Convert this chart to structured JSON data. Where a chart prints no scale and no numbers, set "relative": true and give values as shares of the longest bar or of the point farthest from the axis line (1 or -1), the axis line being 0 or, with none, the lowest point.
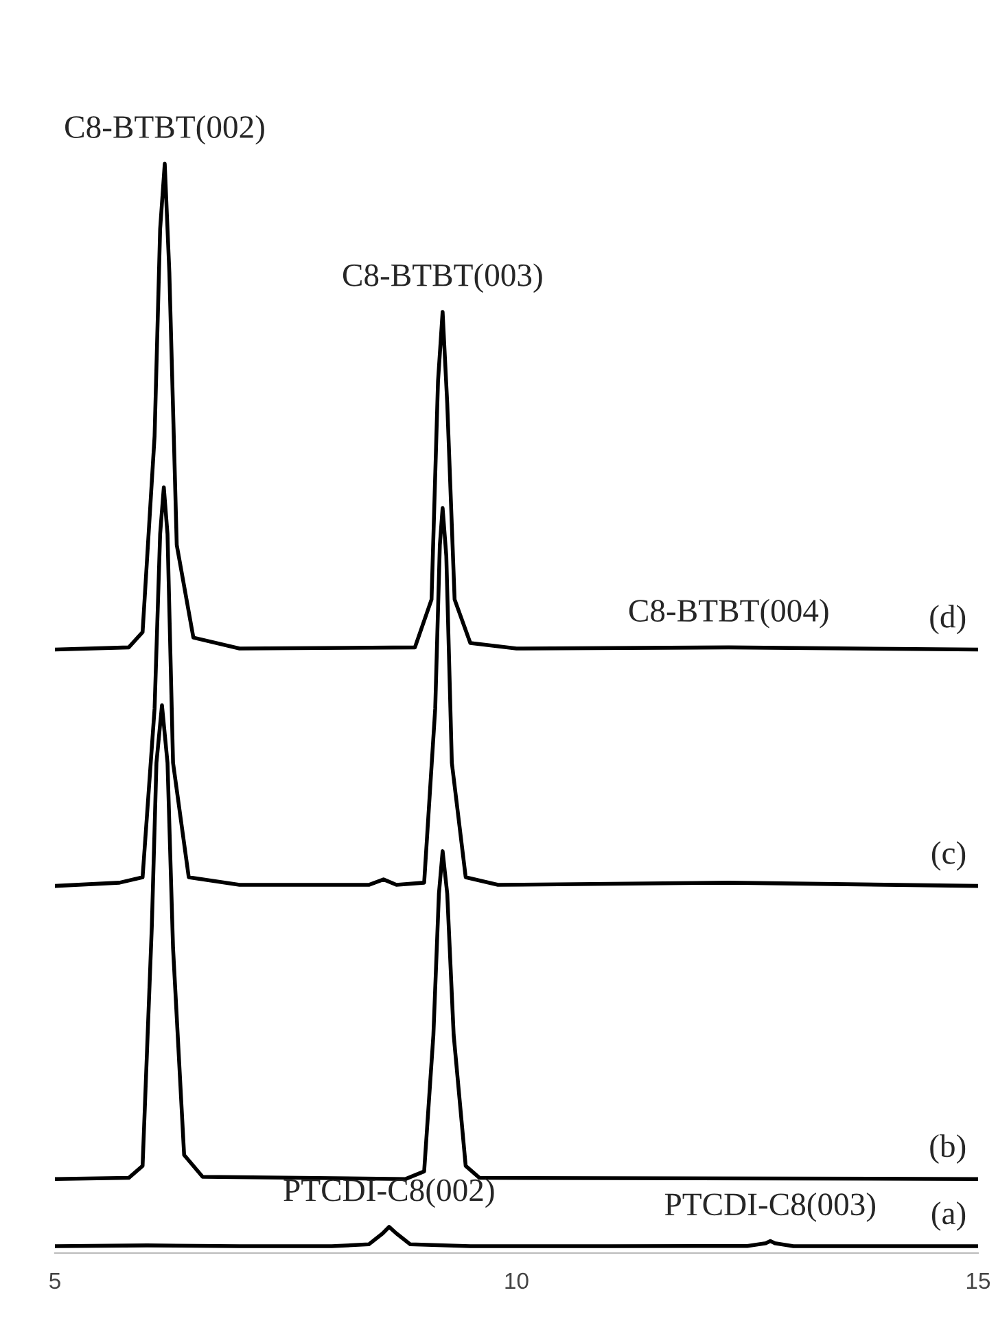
{
  "chart_data": {
    "type": "line",
    "relative": true,
    "xlim": [
      5,
      15
    ],
    "xticks": [
      5,
      10,
      15
    ],
    "grid": false,
    "legend": false,
    "marker": "none",
    "line_style": "solid",
    "series": [
      {
        "name": "(a)",
        "color": "#000000",
        "x": [
          5,
          6,
          7,
          8,
          8.4,
          8.55,
          8.62,
          8.7,
          8.85,
          9.5,
          11,
          12.5,
          12.7,
          12.75,
          12.8,
          13,
          15
        ],
        "values": [
          0.0063,
          0.007,
          0.0063,
          0.0063,
          0.008,
          0.018,
          0.024,
          0.018,
          0.008,
          0.0063,
          0.0063,
          0.0065,
          0.009,
          0.011,
          0.009,
          0.0063,
          0.0063
        ]
      },
      {
        "name": "(b)",
        "color": "#000000",
        "x": [
          5,
          5.8,
          5.95,
          6.05,
          6.1,
          6.16,
          6.22,
          6.28,
          6.4,
          6.6,
          8.8,
          9.0,
          9.1,
          9.16,
          9.2,
          9.25,
          9.32,
          9.45,
          9.6,
          15
        ],
        "values": [
          0.068,
          0.069,
          0.08,
          0.3,
          0.45,
          0.503,
          0.45,
          0.28,
          0.09,
          0.07,
          0.068,
          0.075,
          0.2,
          0.33,
          0.369,
          0.33,
          0.2,
          0.08,
          0.069,
          0.068
        ]
      },
      {
        "name": "(c)",
        "color": "#000000",
        "x": [
          5,
          5.7,
          5.95,
          6.08,
          6.14,
          6.18,
          6.22,
          6.28,
          6.45,
          7,
          8.4,
          8.56,
          8.7,
          9.0,
          9.12,
          9.17,
          9.2,
          9.24,
          9.3,
          9.45,
          9.8,
          12.3,
          15
        ],
        "values": [
          0.337,
          0.34,
          0.345,
          0.5,
          0.66,
          0.703,
          0.66,
          0.45,
          0.345,
          0.338,
          0.338,
          0.343,
          0.338,
          0.34,
          0.5,
          0.65,
          0.684,
          0.64,
          0.45,
          0.345,
          0.338,
          0.34,
          0.337
        ]
      },
      {
        "name": "(d)",
        "color": "#000000",
        "x": [
          5,
          5.8,
          5.95,
          6.08,
          6.14,
          6.19,
          6.24,
          6.32,
          6.5,
          7,
          8.9,
          9.08,
          9.15,
          9.2,
          9.25,
          9.33,
          9.5,
          10,
          12.3,
          15
        ],
        "values": [
          0.554,
          0.556,
          0.57,
          0.75,
          0.94,
          1.0,
          0.9,
          0.65,
          0.565,
          0.555,
          0.556,
          0.6,
          0.8,
          0.864,
          0.78,
          0.6,
          0.56,
          0.555,
          0.556,
          0.554
        ]
      }
    ],
    "annotations": [
      {
        "text": "C8-BTBT(002)",
        "x": 6.19,
        "y": 1.0
      },
      {
        "text": "C8-BTBT(003)",
        "x": 9.2,
        "y": 0.864
      },
      {
        "text": "C8-BTBT(004)",
        "x": 12.3,
        "y": 0.556
      },
      {
        "text": "PTCDI-C8(002)",
        "x": 8.62,
        "y": 0.024
      },
      {
        "text": "PTCDI-C8(003)",
        "x": 12.75,
        "y": 0.011
      }
    ]
  }
}
